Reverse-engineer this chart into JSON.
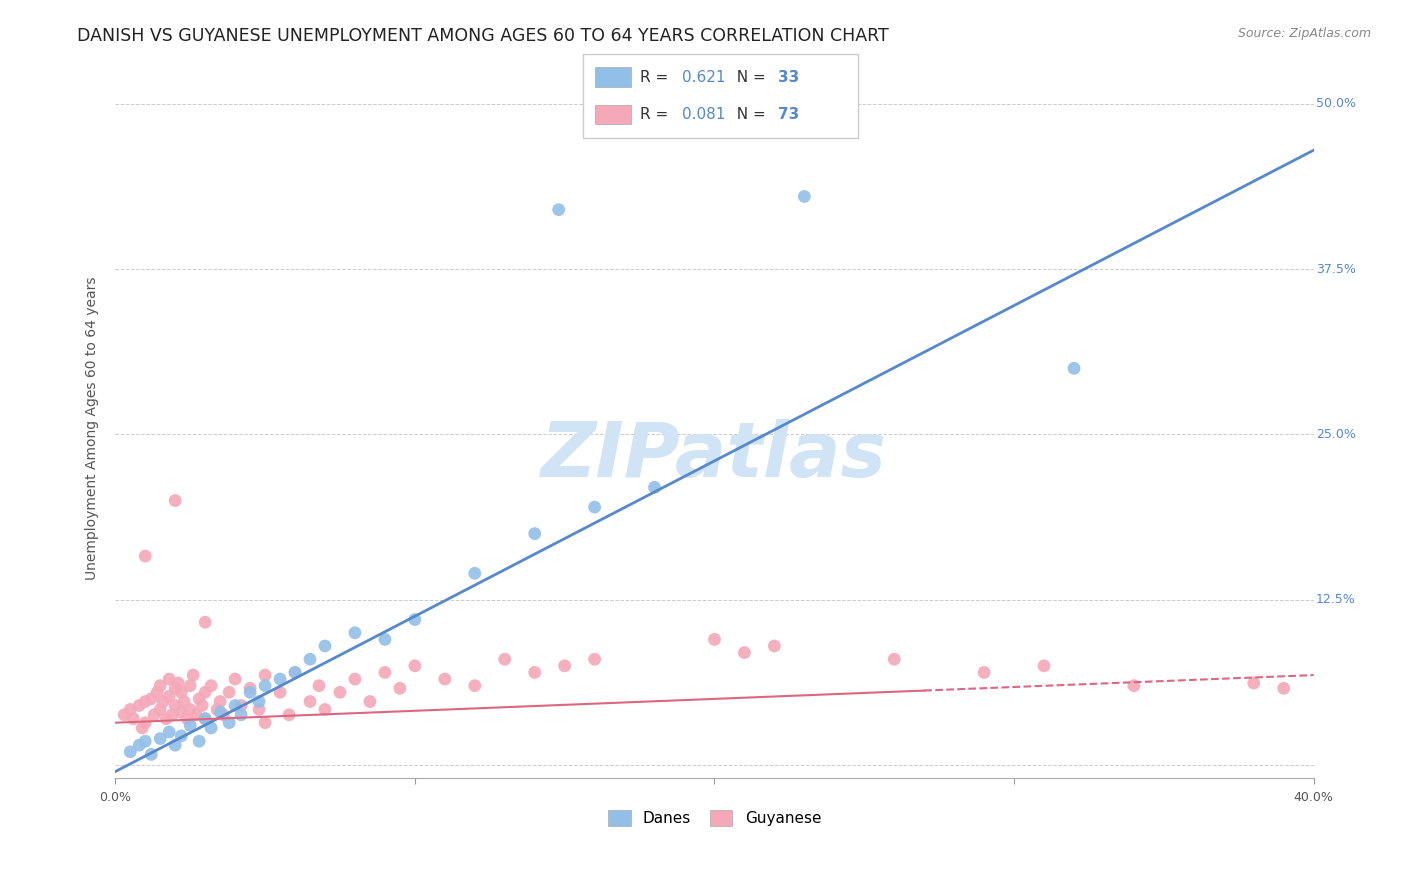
{
  "title": "DANISH VS GUYANESE UNEMPLOYMENT AMONG AGES 60 TO 64 YEARS CORRELATION CHART",
  "source": "Source: ZipAtlas.com",
  "ylabel": "Unemployment Among Ages 60 to 64 years",
  "xlim": [
    0.0,
    0.4
  ],
  "ylim": [
    -0.01,
    0.52
  ],
  "xticks": [
    0.0,
    0.1,
    0.2,
    0.3,
    0.4
  ],
  "xticklabels": [
    "0.0%",
    "",
    "",
    "",
    "40.0%"
  ],
  "yticks": [
    0.0,
    0.125,
    0.25,
    0.375,
    0.5
  ],
  "yticklabels": [
    "",
    "12.5%",
    "25.0%",
    "37.5%",
    "50.0%"
  ],
  "background_color": "#ffffff",
  "grid_color": "#cccccc",
  "legend_R_danes": "0.621",
  "legend_N_danes": "33",
  "legend_R_guyanese": "0.081",
  "legend_N_guyanese": "73",
  "danes_color": "#92bfe8",
  "guyanese_color": "#f4a8b8",
  "danes_line_color": "#5588cc",
  "guyanese_line_color": "#dd6680",
  "danes_line_x0": 0.0,
  "danes_line_y0": -0.005,
  "danes_line_x1": 0.4,
  "danes_line_y1": 0.465,
  "guyanese_line_x0": 0.0,
  "guyanese_line_y0": 0.032,
  "guyanese_line_x1": 0.4,
  "guyanese_line_y1": 0.068,
  "guyanese_line_solid_end": 0.27,
  "danes_scatter_x": [
    0.005,
    0.008,
    0.01,
    0.012,
    0.015,
    0.018,
    0.02,
    0.022,
    0.025,
    0.028,
    0.03,
    0.032,
    0.035,
    0.038,
    0.04,
    0.042,
    0.045,
    0.048,
    0.05,
    0.055,
    0.06,
    0.065,
    0.07,
    0.08,
    0.09,
    0.1,
    0.12,
    0.14,
    0.16,
    0.18,
    0.32,
    0.148,
    0.23
  ],
  "danes_scatter_y": [
    0.01,
    0.015,
    0.018,
    0.008,
    0.02,
    0.025,
    0.015,
    0.022,
    0.03,
    0.018,
    0.035,
    0.028,
    0.04,
    0.032,
    0.045,
    0.038,
    0.055,
    0.048,
    0.06,
    0.065,
    0.07,
    0.08,
    0.09,
    0.1,
    0.095,
    0.11,
    0.145,
    0.175,
    0.195,
    0.21,
    0.3,
    0.42,
    0.43
  ],
  "guyanese_scatter_x": [
    0.003,
    0.005,
    0.006,
    0.008,
    0.009,
    0.01,
    0.01,
    0.012,
    0.013,
    0.014,
    0.015,
    0.015,
    0.016,
    0.017,
    0.018,
    0.018,
    0.019,
    0.02,
    0.02,
    0.021,
    0.022,
    0.022,
    0.023,
    0.024,
    0.025,
    0.025,
    0.026,
    0.027,
    0.028,
    0.029,
    0.03,
    0.03,
    0.032,
    0.034,
    0.035,
    0.036,
    0.038,
    0.04,
    0.042,
    0.045,
    0.048,
    0.05,
    0.055,
    0.058,
    0.06,
    0.065,
    0.068,
    0.07,
    0.075,
    0.08,
    0.085,
    0.09,
    0.095,
    0.1,
    0.11,
    0.12,
    0.13,
    0.14,
    0.15,
    0.16,
    0.2,
    0.21,
    0.22,
    0.26,
    0.29,
    0.31,
    0.34,
    0.38,
    0.39,
    0.01,
    0.02,
    0.03,
    0.05
  ],
  "guyanese_scatter_y": [
    0.038,
    0.042,
    0.035,
    0.045,
    0.028,
    0.048,
    0.032,
    0.05,
    0.038,
    0.055,
    0.042,
    0.06,
    0.048,
    0.035,
    0.052,
    0.065,
    0.038,
    0.058,
    0.045,
    0.062,
    0.04,
    0.055,
    0.048,
    0.035,
    0.06,
    0.042,
    0.068,
    0.038,
    0.05,
    0.045,
    0.055,
    0.035,
    0.06,
    0.042,
    0.048,
    0.038,
    0.055,
    0.065,
    0.045,
    0.058,
    0.042,
    0.068,
    0.055,
    0.038,
    0.07,
    0.048,
    0.06,
    0.042,
    0.055,
    0.065,
    0.048,
    0.07,
    0.058,
    0.075,
    0.065,
    0.06,
    0.08,
    0.07,
    0.075,
    0.08,
    0.095,
    0.085,
    0.09,
    0.08,
    0.07,
    0.075,
    0.06,
    0.062,
    0.058,
    0.158,
    0.2,
    0.108,
    0.032
  ],
  "title_fontsize": 12.5,
  "source_fontsize": 9,
  "axis_label_fontsize": 10,
  "tick_fontsize": 9,
  "legend_fontsize": 11,
  "watermark_text": "ZIPatlas",
  "watermark_color": "#d0e4f5",
  "watermark_fontsize": 55
}
